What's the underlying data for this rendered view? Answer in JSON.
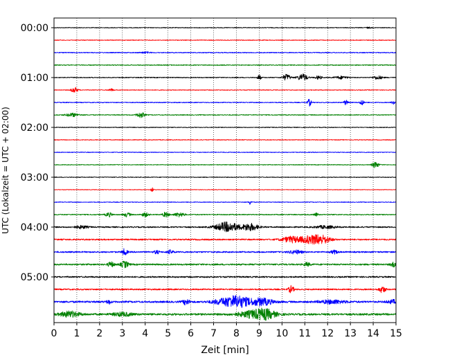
{
  "chart_data": {
    "type": "line",
    "xlabel": "Zeit  [min]",
    "ylabel": "UTC (Lokalzeit = UTC + 02:00)",
    "xlim": [
      0,
      15
    ],
    "x_ticks": [
      0,
      1,
      2,
      3,
      4,
      5,
      6,
      7,
      8,
      9,
      10,
      11,
      12,
      13,
      14,
      15
    ],
    "x_gridlines": "dotted, every 1 min",
    "y_tick_labels": [
      "00:00",
      "01:00",
      "02:00",
      "03:00",
      "04:00",
      "05:00"
    ],
    "trace_interval_minutes": 15,
    "colors": [
      "#000000",
      "#ff0000",
      "#0000ff",
      "#008000"
    ],
    "series": [
      {
        "start": "00:00",
        "color": "#000000",
        "noise": 0.5,
        "events": [
          [
            13.8,
            0.08,
            0.8
          ]
        ]
      },
      {
        "start": "00:15",
        "color": "#ff0000",
        "noise": 0.5,
        "events": []
      },
      {
        "start": "00:30",
        "color": "#0000ff",
        "noise": 0.6,
        "events": [
          [
            4.0,
            0.15,
            1.0
          ]
        ]
      },
      {
        "start": "00:45",
        "color": "#008000",
        "noise": 0.6,
        "events": []
      },
      {
        "start": "01:00",
        "color": "#000000",
        "noise": 0.6,
        "events": [
          [
            9.0,
            0.05,
            4.0
          ],
          [
            10.2,
            0.12,
            4.5
          ],
          [
            10.9,
            0.15,
            5.0
          ],
          [
            11.6,
            0.1,
            2.5
          ],
          [
            12.6,
            0.2,
            2.0
          ],
          [
            14.2,
            0.15,
            2.5
          ]
        ]
      },
      {
        "start": "01:15",
        "color": "#ff0000",
        "noise": 0.5,
        "events": [
          [
            0.9,
            0.1,
            4.0
          ],
          [
            2.5,
            0.08,
            1.8
          ]
        ]
      },
      {
        "start": "01:30",
        "color": "#0000ff",
        "noise": 0.6,
        "events": [
          [
            11.2,
            0.06,
            5.0
          ],
          [
            12.8,
            0.06,
            3.5
          ],
          [
            13.5,
            0.06,
            4.0
          ],
          [
            14.9,
            0.06,
            3.0
          ]
        ]
      },
      {
        "start": "01:45",
        "color": "#008000",
        "noise": 0.6,
        "events": [
          [
            0.8,
            0.2,
            2.5
          ],
          [
            3.8,
            0.12,
            4.0
          ]
        ]
      },
      {
        "start": "02:00",
        "color": "#000000",
        "noise": 0.5,
        "events": []
      },
      {
        "start": "02:15",
        "color": "#ff0000",
        "noise": 0.5,
        "events": []
      },
      {
        "start": "02:30",
        "color": "#0000ff",
        "noise": 0.5,
        "events": []
      },
      {
        "start": "02:45",
        "color": "#008000",
        "noise": 0.5,
        "events": [
          [
            14.1,
            0.1,
            4.5
          ]
        ]
      },
      {
        "start": "03:00",
        "color": "#000000",
        "noise": 0.5,
        "events": []
      },
      {
        "start": "03:15",
        "color": "#ff0000",
        "noise": 0.4,
        "events": [
          [
            4.3,
            0.04,
            4.0
          ]
        ]
      },
      {
        "start": "03:30",
        "color": "#0000ff",
        "noise": 0.5,
        "events": [
          [
            8.6,
            0.04,
            3.5
          ]
        ]
      },
      {
        "start": "03:45",
        "color": "#008000",
        "noise": 0.7,
        "events": [
          [
            2.4,
            0.1,
            3.0
          ],
          [
            3.2,
            0.1,
            3.0
          ],
          [
            4.0,
            0.1,
            3.0
          ],
          [
            4.9,
            0.1,
            3.5
          ],
          [
            5.5,
            0.15,
            3.0
          ],
          [
            11.5,
            0.06,
            2.5
          ]
        ]
      },
      {
        "start": "04:00",
        "color": "#000000",
        "noise": 0.9,
        "events": [
          [
            1.2,
            0.2,
            2.0
          ],
          [
            7.6,
            0.35,
            7.0
          ],
          [
            8.6,
            0.25,
            5.0
          ],
          [
            11.9,
            0.3,
            2.0
          ]
        ]
      },
      {
        "start": "04:15",
        "color": "#ff0000",
        "noise": 1.0,
        "events": [
          [
            10.4,
            0.3,
            4.0
          ],
          [
            11.3,
            0.35,
            5.5
          ],
          [
            11.8,
            0.25,
            4.0
          ]
        ]
      },
      {
        "start": "04:30",
        "color": "#0000ff",
        "noise": 1.0,
        "events": [
          [
            3.1,
            0.08,
            4.5
          ],
          [
            4.5,
            0.08,
            2.5
          ],
          [
            5.1,
            0.1,
            2.5
          ],
          [
            10.6,
            0.2,
            2.5
          ],
          [
            12.3,
            0.1,
            2.5
          ]
        ]
      },
      {
        "start": "04:45",
        "color": "#008000",
        "noise": 1.1,
        "events": [
          [
            2.5,
            0.1,
            3.5
          ],
          [
            3.1,
            0.12,
            4.5
          ],
          [
            11.1,
            0.1,
            2.5
          ],
          [
            14.9,
            0.1,
            3.0
          ]
        ]
      },
      {
        "start": "05:00",
        "color": "#000000",
        "noise": 1.0,
        "events": []
      },
      {
        "start": "05:15",
        "color": "#ff0000",
        "noise": 1.0,
        "events": [
          [
            10.4,
            0.08,
            5.0
          ],
          [
            14.4,
            0.1,
            4.5
          ]
        ]
      },
      {
        "start": "05:30",
        "color": "#0000ff",
        "noise": 1.3,
        "events": [
          [
            2.4,
            0.06,
            3.0
          ],
          [
            5.8,
            0.1,
            4.0
          ],
          [
            7.5,
            0.4,
            4.0
          ],
          [
            8.1,
            0.35,
            7.0
          ],
          [
            9.1,
            0.35,
            5.0
          ],
          [
            12.2,
            0.4,
            2.5
          ],
          [
            14.9,
            0.2,
            2.5
          ]
        ]
      },
      {
        "start": "05:45",
        "color": "#008000",
        "noise": 1.4,
        "events": [
          [
            0.7,
            0.3,
            4.0
          ],
          [
            3.0,
            0.3,
            2.5
          ],
          [
            8.8,
            0.5,
            5.0
          ],
          [
            9.3,
            0.3,
            4.5
          ]
        ]
      }
    ]
  }
}
